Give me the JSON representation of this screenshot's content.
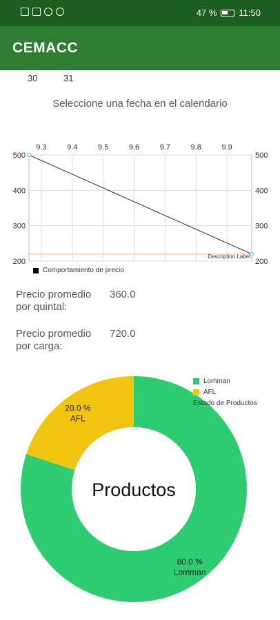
{
  "status_bar": {
    "battery": "47 %",
    "time": "11:50",
    "icons": [
      "sim-icon",
      "signal-icon",
      "app-notification-icon",
      "facebook-icon"
    ]
  },
  "app_bar": {
    "title": "CEMACC"
  },
  "calendar": {
    "days": [
      "30",
      "31"
    ]
  },
  "hint": "Seleccione una fecha en el calendario",
  "colors": {
    "status_bar": "#1b5e20",
    "app_bar": "#2e7d32",
    "lomman": "#2ecc71",
    "afl": "#f1c40f"
  },
  "chart_data": [
    {
      "type": "line",
      "x_ticks": [
        "9.3",
        "9.4",
        "9.5",
        "9.6",
        "9.7",
        "9.8",
        "9.9"
      ],
      "y_ticks_left": [
        "500",
        "400",
        "300",
        "200"
      ],
      "y_ticks_right": [
        "500",
        "400",
        "300",
        "200"
      ],
      "ylim": [
        200,
        500
      ],
      "xlim": [
        9.26,
        9.98
      ],
      "series": [
        {
          "name": "Comportamiento de precio",
          "x": [
            9.26,
            9.98
          ],
          "y": [
            500,
            220
          ]
        }
      ],
      "limit_line": 220,
      "description": "Description Label",
      "grid": true,
      "legend": "bottom-left"
    },
    {
      "type": "pie",
      "center_text": "Productos",
      "slices": [
        {
          "label": "Lomman",
          "value": 80.0,
          "text": "80.0 %",
          "color": "#2ecc71"
        },
        {
          "label": "AFL",
          "value": 20.0,
          "text": "20.0 %",
          "color": "#f1c40f"
        }
      ],
      "description": "Estado de Productos",
      "legend": "top-right"
    }
  ],
  "prices": [
    {
      "label": "Precio promedio por quintal:",
      "value": "360.0"
    },
    {
      "label": "Precio promedio por carga:",
      "value": "720.0"
    }
  ]
}
